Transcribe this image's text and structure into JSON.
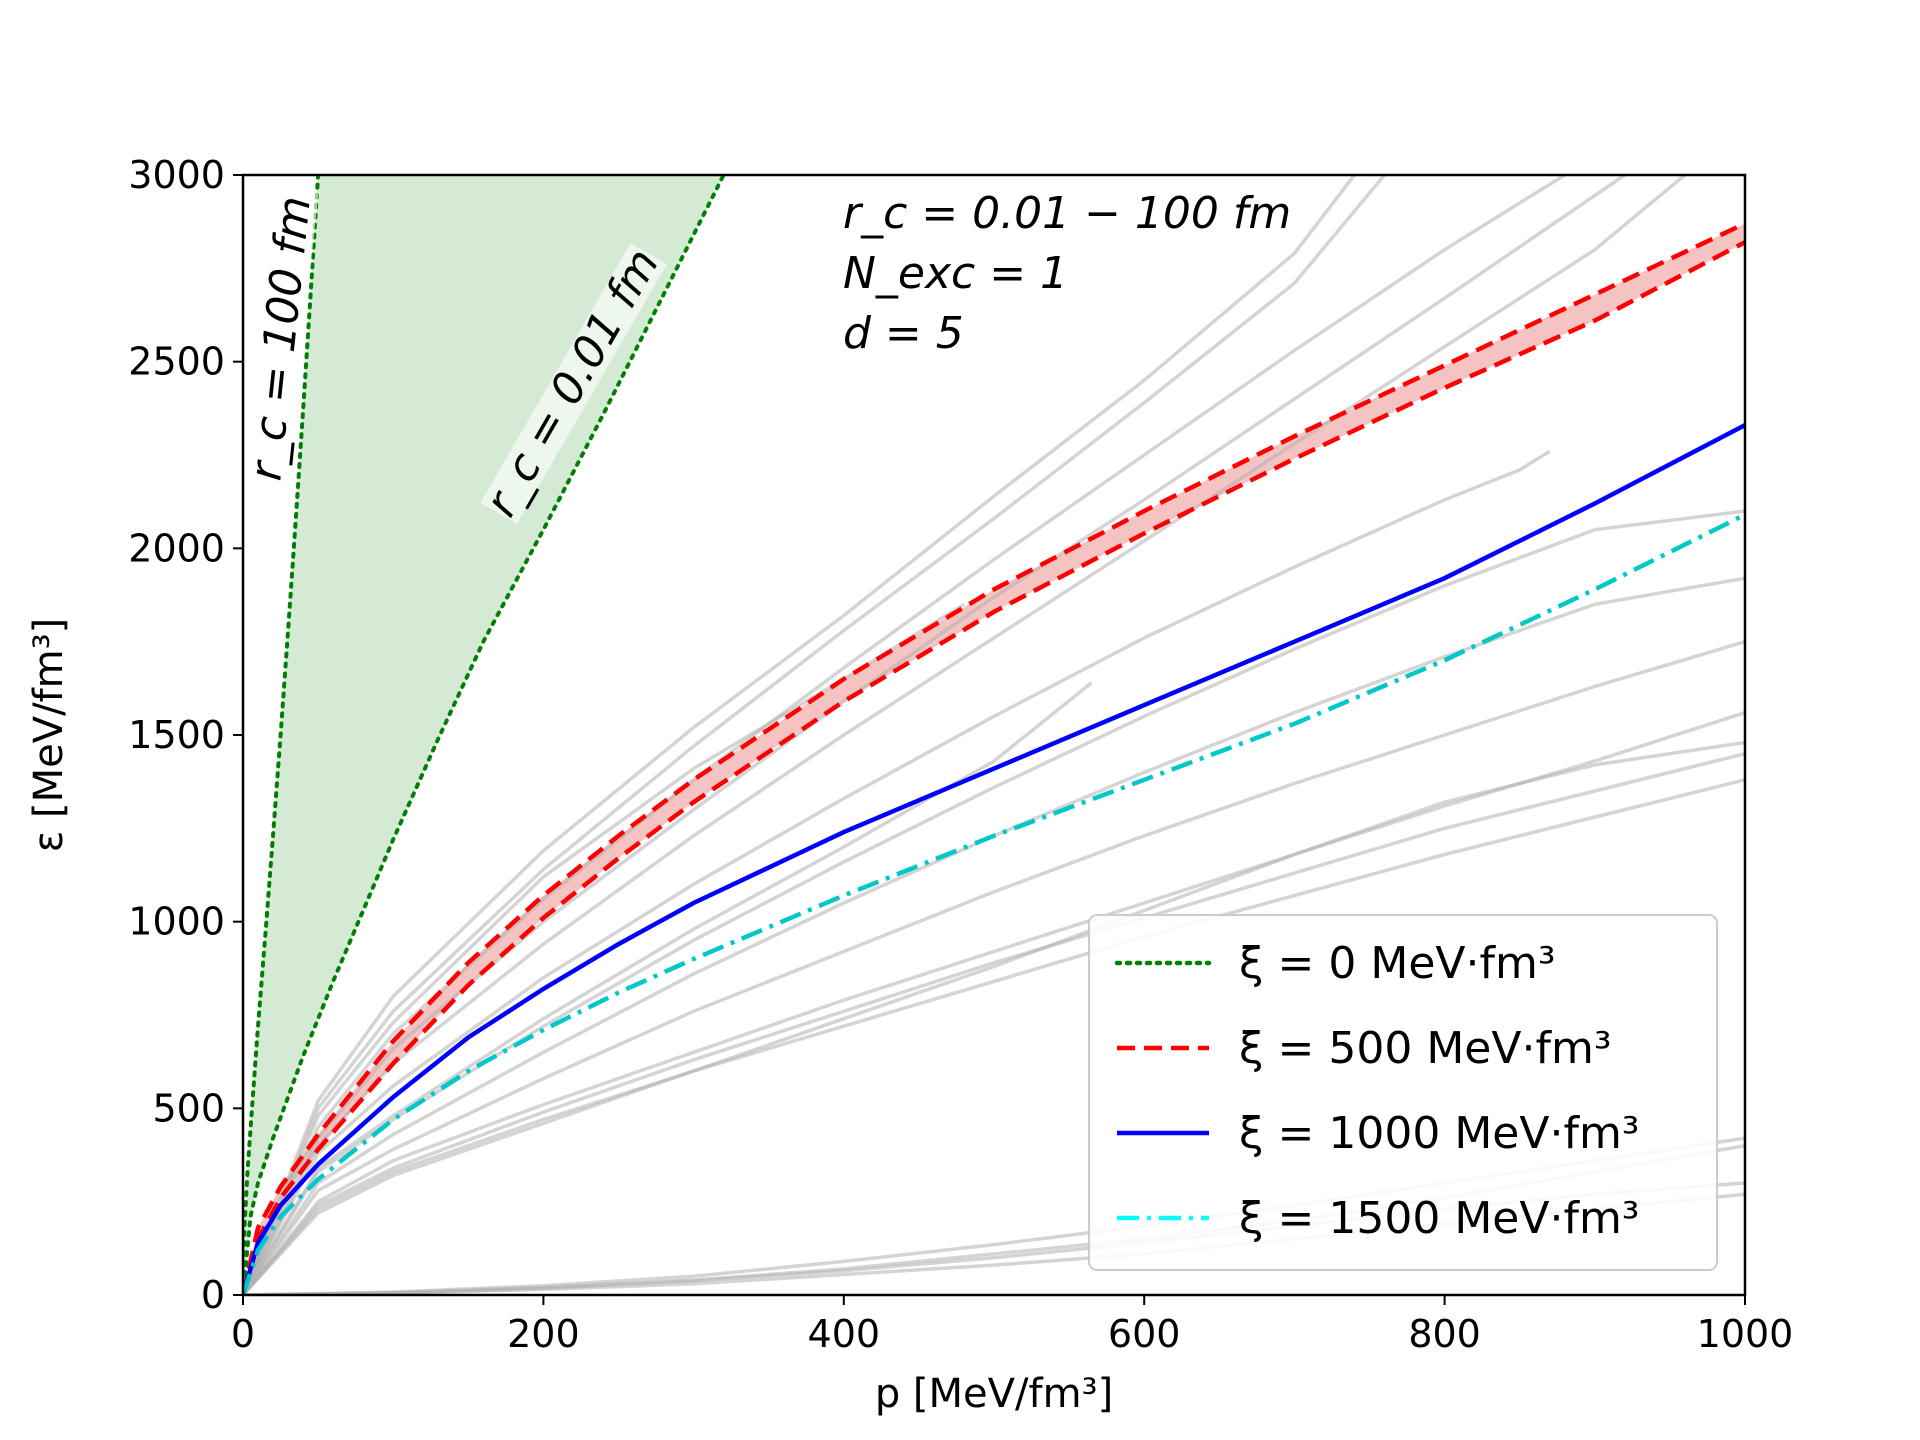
{
  "chart_data": {
    "type": "line",
    "xlabel": "p [MeV/fm³]",
    "ylabel": "ε [MeV/fm³]",
    "xlim": [
      0,
      1000
    ],
    "ylim": [
      0,
      3000
    ],
    "xticks": [
      "0",
      "200",
      "400",
      "600",
      "800",
      "1000"
    ],
    "yticks": [
      "0",
      "500",
      "1000",
      "1500",
      "2000",
      "2500",
      "3000"
    ],
    "grid": false,
    "legend_position": "lower-right",
    "annotation": [
      "r_c = 0.01 − 100 fm",
      "N_exc = 1",
      "d = 5"
    ],
    "curve_labels": [
      "r_c = 100 fm",
      "r_c = 0.01 fm"
    ],
    "series": [
      {
        "name": "ξ = 0 MeV·fm³",
        "style": "dotted",
        "color": "#008000",
        "curves": [
          {
            "label": "r_c = 100 fm",
            "x": [
              0,
              1,
              3,
              6,
              10,
              15,
              20,
              25,
              30,
              35,
              40,
              45,
              50
            ],
            "y": [
              0,
              180,
              330,
              500,
              720,
              970,
              1230,
              1500,
              1780,
              2070,
              2370,
              2680,
              3000
            ]
          },
          {
            "label": "r_c = 0.01 fm",
            "x": [
              0,
              5,
              10,
              20,
              40,
              60,
              80,
              100,
              130,
              160,
              200,
              240,
              280,
              320
            ],
            "y": [
              0,
              210,
              300,
              420,
              640,
              840,
              1030,
              1220,
              1490,
              1750,
              2050,
              2360,
              2680,
              3000
            ]
          }
        ],
        "band_color": "#cde6cd"
      },
      {
        "name": "ξ = 500 MeV·fm³",
        "style": "dashed",
        "color": "#ff0000",
        "band_color": "#f4b8b8",
        "curves": [
          {
            "x": [
              0,
              10,
              25,
              50,
              100,
              150,
              200,
              250,
              300,
              400,
              500,
              600,
              700,
              800,
              900,
              1000
            ],
            "y": [
              0,
              150,
              260,
              390,
              620,
              830,
              1010,
              1170,
              1320,
              1590,
              1830,
              2040,
              2240,
              2430,
              2610,
              2820
            ]
          },
          {
            "x": [
              0,
              10,
              25,
              50,
              100,
              150,
              200,
              250,
              300,
              400,
              500,
              600,
              700,
              800,
              900,
              1000
            ],
            "y": [
              0,
              180,
              290,
              430,
              680,
              890,
              1070,
              1230,
              1380,
              1650,
              1890,
              2100,
              2300,
              2490,
              2680,
              2870
            ]
          }
        ]
      },
      {
        "name": "ξ = 1000 MeV·fm³",
        "style": "solid",
        "color": "#0000ff",
        "curves": [
          {
            "x": [
              0,
              10,
              25,
              50,
              100,
              150,
              200,
              250,
              300,
              400,
              500,
              600,
              700,
              800,
              900,
              1000
            ],
            "y": [
              0,
              140,
              240,
              350,
              530,
              690,
              820,
              940,
              1050,
              1240,
              1410,
              1580,
              1750,
              1920,
              2120,
              2330
            ]
          }
        ]
      },
      {
        "name": "ξ = 1500 MeV·fm³",
        "style": "dashdot",
        "color": "#00c8c8",
        "legend_color": "#00ffff",
        "curves": [
          {
            "x": [
              0,
              10,
              25,
              50,
              100,
              150,
              200,
              250,
              300,
              400,
              500,
              600,
              700,
              800,
              900,
              1000
            ],
            "y": [
              0,
              120,
              210,
              310,
              470,
              600,
              710,
              810,
              900,
              1070,
              1230,
              1380,
              1530,
              1700,
              1890,
              2090
            ]
          }
        ]
      }
    ],
    "background_curves": {
      "color": "#b0b0b0",
      "curves": [
        {
          "x": [
            0,
            50,
            100,
            200,
            300,
            400,
            500,
            600,
            700,
            740
          ],
          "y": [
            0,
            520,
            800,
            1190,
            1520,
            1820,
            2140,
            2450,
            2790,
            3000
          ]
        },
        {
          "x": [
            0,
            50,
            100,
            200,
            300,
            400,
            500,
            600,
            700,
            760
          ],
          "y": [
            0,
            500,
            760,
            1140,
            1470,
            1780,
            2080,
            2390,
            2710,
            3000
          ]
        },
        {
          "x": [
            0,
            50,
            100,
            200,
            300,
            400,
            500,
            600,
            700,
            800,
            880
          ],
          "y": [
            0,
            450,
            700,
            1060,
            1380,
            1680,
            1970,
            2250,
            2530,
            2800,
            3000
          ]
        },
        {
          "x": [
            0,
            50,
            100,
            200,
            300,
            400,
            500,
            600,
            700,
            800,
            920
          ],
          "y": [
            0,
            420,
            660,
            1000,
            1300,
            1590,
            1870,
            2130,
            2400,
            2670,
            3000
          ]
        },
        {
          "x": [
            0,
            50,
            100,
            200,
            300,
            400,
            500,
            600,
            700,
            800,
            900,
            960
          ],
          "y": [
            0,
            400,
            620,
            940,
            1230,
            1500,
            1760,
            2020,
            2280,
            2540,
            2800,
            3000
          ]
        },
        {
          "x": [
            0,
            50,
            100,
            200,
            300,
            400,
            480
          ],
          "y": [
            0,
            480,
            730,
            1120,
            1410,
            1650,
            1850
          ]
        },
        {
          "x": [
            0,
            50,
            100,
            200,
            300,
            400,
            500,
            600,
            700,
            800,
            850,
            870
          ],
          "y": [
            0,
            380,
            560,
            850,
            1100,
            1330,
            1550,
            1760,
            1950,
            2130,
            2210,
            2260
          ]
        },
        {
          "x": [
            0,
            50,
            100,
            200,
            300,
            400,
            500,
            565
          ],
          "y": [
            0,
            340,
            480,
            740,
            980,
            1200,
            1430,
            1640
          ]
        },
        {
          "x": [
            0,
            50,
            100,
            200,
            300,
            400,
            500,
            600,
            700,
            800,
            900,
            1000
          ],
          "y": [
            0,
            330,
            470,
            720,
            950,
            1160,
            1360,
            1550,
            1730,
            1900,
            2050,
            2100
          ]
        },
        {
          "x": [
            0,
            50,
            100,
            200,
            300,
            400,
            500,
            600,
            700,
            800,
            900,
            1000
          ],
          "y": [
            0,
            300,
            430,
            650,
            860,
            1050,
            1230,
            1400,
            1560,
            1710,
            1850,
            1920
          ]
        },
        {
          "x": [
            0,
            50,
            100,
            200,
            300,
            400,
            500,
            600,
            700,
            800,
            900,
            1000
          ],
          "y": [
            0,
            280,
            390,
            580,
            760,
            920,
            1080,
            1230,
            1370,
            1500,
            1630,
            1750
          ]
        },
        {
          "x": [
            0,
            50,
            100,
            200,
            300,
            400,
            500,
            600,
            700,
            800,
            900,
            1000
          ],
          "y": [
            0,
            240,
            340,
            490,
            630,
            760,
            890,
            1010,
            1130,
            1250,
            1350,
            1450
          ]
        },
        {
          "x": [
            0,
            50,
            100,
            200,
            300,
            400,
            500,
            600,
            700,
            800,
            900,
            1000
          ],
          "y": [
            0,
            250,
            360,
            510,
            650,
            790,
            920,
            1050,
            1180,
            1310,
            1430,
            1560
          ]
        },
        {
          "x": [
            0,
            50,
            100,
            200,
            300,
            400,
            500,
            600,
            700,
            800,
            900,
            1000
          ],
          "y": [
            0,
            230,
            330,
            470,
            600,
            720,
            840,
            960,
            1070,
            1180,
            1280,
            1380
          ]
        },
        {
          "x": [
            0,
            50,
            100,
            200,
            300,
            400,
            500,
            600,
            700,
            800,
            900,
            1000
          ],
          "y": [
            0,
            220,
            320,
            460,
            600,
            740,
            880,
            1030,
            1180,
            1320,
            1420,
            1480
          ]
        },
        {
          "x": [
            0,
            100,
            200,
            300,
            400,
            500,
            600,
            700,
            800,
            900,
            1000
          ],
          "y": [
            0,
            5,
            15,
            30,
            55,
            80,
            110,
            150,
            190,
            230,
            270
          ]
        },
        {
          "x": [
            0,
            100,
            200,
            300,
            400,
            500,
            600,
            700,
            800,
            900,
            1000
          ],
          "y": [
            0,
            6,
            20,
            40,
            70,
            110,
            150,
            200,
            260,
            330,
            400
          ]
        },
        {
          "x": [
            0,
            100,
            200,
            300,
            400,
            500,
            600,
            700,
            800,
            900,
            1000
          ],
          "y": [
            0,
            8,
            25,
            50,
            90,
            135,
            185,
            240,
            300,
            360,
            420
          ]
        },
        {
          "x": [
            0,
            100,
            200,
            300,
            400,
            500,
            600,
            700,
            800,
            900,
            1000
          ],
          "y": [
            0,
            5,
            18,
            38,
            65,
            100,
            140,
            185,
            230,
            270,
            300
          ]
        }
      ]
    }
  }
}
